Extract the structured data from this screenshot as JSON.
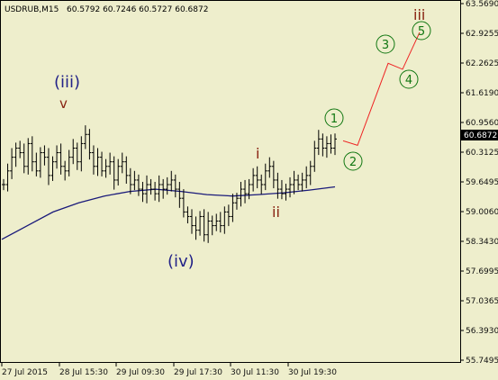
{
  "header": {
    "symbol_tf": "USDRUB,M15",
    "ohlc": "60.5792 60.7246 60.5727 60.6872"
  },
  "price_axis": {
    "labels": [
      "63.5690",
      "62.9255",
      "62.2625",
      "61.6190",
      "60.9560",
      "60.3125",
      "59.6495",
      "59.0060",
      "58.3430",
      "57.6995",
      "57.0365",
      "56.3930",
      "55.7495"
    ]
  },
  "time_axis": {
    "labels": [
      "27 Jul 2015",
      "28 Jul 15:30",
      "29 Jul 09:30",
      "29 Jul 17:30",
      "30 Jul 11:30",
      "30 Jul 19:30"
    ]
  },
  "current_price": "60.6872",
  "wave_labels": {
    "iii_major": "(iii)",
    "v": "v",
    "iv_major": "(iv)",
    "i": "i",
    "ii": "ii",
    "iii_target": "iii",
    "c1": "1",
    "c2": "2",
    "c3": "3",
    "c4": "4",
    "c5": "5"
  },
  "colors": {
    "background": "#eeeecc",
    "bars": "#000000",
    "moving_average": "#1a1a7a",
    "forecast": "#ee2222",
    "circle_label": "#117711",
    "major_label": "#222288",
    "minor_label": "#882211"
  },
  "chart_data": {
    "type": "ohlc",
    "ylim": [
      55.7495,
      63.569
    ],
    "last_close": 60.6872,
    "bar_closes": [
      59.6,
      59.9,
      60.2,
      60.4,
      60.3,
      60.0,
      60.5,
      60.1,
      59.9,
      60.3,
      60.2,
      59.8,
      60.1,
      60.3,
      60.0,
      59.9,
      60.2,
      60.4,
      60.1,
      60.5,
      60.7,
      60.3,
      60.0,
      60.2,
      59.9,
      60.0,
      60.1,
      59.7,
      60.0,
      60.1,
      59.8,
      59.6,
      59.7,
      59.5,
      59.4,
      59.6,
      59.5,
      59.4,
      59.6,
      59.5,
      59.6,
      59.7,
      59.5,
      59.3,
      59.0,
      58.9,
      58.7,
      58.6,
      58.9,
      58.5,
      58.8,
      58.7,
      58.8,
      58.7,
      59.0,
      58.9,
      59.2,
      59.3,
      59.5,
      59.4,
      59.6,
      59.8,
      59.7,
      59.6,
      59.9,
      60.0,
      59.7,
      59.5,
      59.4,
      59.5,
      59.6,
      59.7,
      59.6,
      59.7,
      59.8,
      60.0,
      60.4,
      60.6,
      60.4,
      60.5,
      60.4,
      60.6
    ],
    "forecast_path": [
      60.56,
      60.46,
      62.26,
      62.13,
      62.94
    ],
    "ma_series": [
      58.4,
      58.7,
      59.0,
      59.2,
      59.35,
      59.45,
      59.5,
      59.45,
      59.38,
      59.35,
      59.38,
      59.42,
      59.48,
      59.55
    ]
  }
}
